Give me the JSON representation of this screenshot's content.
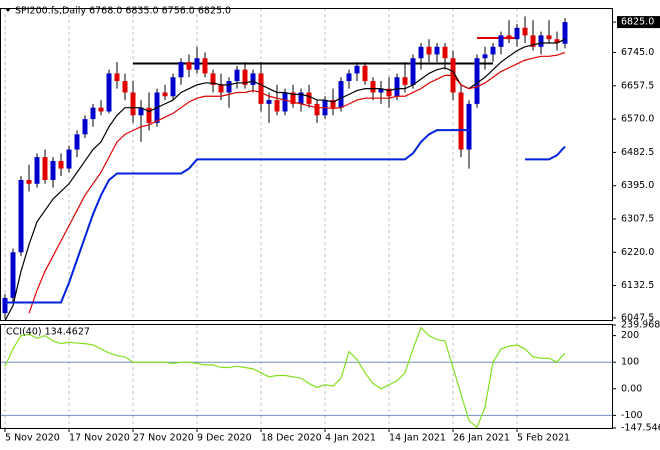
{
  "chart_data": [
    {
      "type": "candlestick",
      "title": "SPI200.fs,Daily  6768.0 6835.0 6756.0 6825.0",
      "categories": [
        "5 Nov 2020",
        null,
        null,
        null,
        null,
        null,
        null,
        null,
        "17 Nov 2020",
        null,
        null,
        null,
        null,
        null,
        null,
        null,
        "27 Nov 2020",
        null,
        null,
        null,
        null,
        null,
        null,
        null,
        "9 Dec 2020",
        null,
        null,
        null,
        null,
        null,
        null,
        null,
        "18 Dec 2020",
        null,
        null,
        null,
        null,
        null,
        null,
        null,
        "4 Jan 2021",
        null,
        null,
        null,
        null,
        null,
        null,
        null,
        "14 Jan 2021",
        null,
        null,
        null,
        null,
        null,
        null,
        null,
        "26 Jan 2021",
        null,
        null,
        null,
        null,
        null,
        null,
        null,
        "5 Feb 2021",
        null,
        null,
        null,
        null,
        null,
        null
      ],
      "open": [
        6060,
        6100,
        6220,
        6410,
        6400,
        6470,
        6410,
        6460,
        6440,
        6490,
        6530,
        6570,
        6600,
        6590,
        6690,
        6670,
        6640,
        6580,
        6600,
        6560,
        6640,
        6630,
        6680,
        6720,
        6700,
        6730,
        6690,
        6660,
        6640,
        6670,
        6700,
        6660,
        6690,
        6610,
        6620,
        6590,
        6640,
        6610,
        6640,
        6610,
        6580,
        6620,
        6600,
        6670,
        6690,
        6710,
        6670,
        6640,
        6650,
        6630,
        6680,
        6660,
        6730,
        6760,
        6740,
        6760,
        6730,
        6640,
        6490,
        6610,
        6730,
        6740,
        6760,
        6790,
        6780,
        6810,
        6790,
        6760,
        6790,
        6780,
        6768
      ],
      "high": [
        6110,
        6230,
        6420,
        6450,
        6480,
        6490,
        6470,
        6480,
        6500,
        6540,
        6580,
        6610,
        6620,
        6700,
        6720,
        6690,
        6670,
        6620,
        6640,
        6650,
        6660,
        6690,
        6730,
        6740,
        6760,
        6745,
        6700,
        6690,
        6680,
        6710,
        6720,
        6700,
        6720,
        6640,
        6660,
        6650,
        6660,
        6650,
        6660,
        6620,
        6630,
        6650,
        6680,
        6700,
        6720,
        6720,
        6680,
        6670,
        6680,
        6690,
        6720,
        6740,
        6770,
        6780,
        6770,
        6770,
        6750,
        6660,
        6620,
        6740,
        6760,
        6770,
        6800,
        6830,
        6820,
        6840,
        6830,
        6800,
        6830,
        6800,
        6835
      ],
      "low": [
        6045,
        6090,
        6210,
        6380,
        6390,
        6400,
        6390,
        6420,
        6430,
        6470,
        6520,
        6550,
        6580,
        6585,
        6650,
        6620,
        6560,
        6510,
        6540,
        6550,
        6620,
        6620,
        6660,
        6680,
        6690,
        6680,
        6640,
        6620,
        6600,
        6650,
        6650,
        6640,
        6590,
        6560,
        6580,
        6580,
        6600,
        6590,
        6600,
        6560,
        6570,
        6580,
        6590,
        6650,
        6670,
        6660,
        6620,
        6610,
        6600,
        6620,
        6640,
        6650,
        6700,
        6720,
        6720,
        6700,
        6620,
        6470,
        6440,
        6600,
        6700,
        6720,
        6740,
        6770,
        6760,
        6770,
        6750,
        6740,
        6770,
        6750,
        6756
      ],
      "close": [
        6100,
        6220,
        6410,
        6400,
        6470,
        6410,
        6460,
        6440,
        6490,
        6530,
        6570,
        6600,
        6590,
        6690,
        6670,
        6640,
        6580,
        6600,
        6560,
        6640,
        6630,
        6680,
        6720,
        6700,
        6730,
        6690,
        6660,
        6640,
        6670,
        6700,
        6660,
        6690,
        6610,
        6620,
        6590,
        6640,
        6610,
        6640,
        6610,
        6580,
        6620,
        6600,
        6670,
        6690,
        6710,
        6670,
        6640,
        6650,
        6630,
        6680,
        6660,
        6730,
        6760,
        6740,
        6760,
        6730,
        6640,
        6490,
        6610,
        6730,
        6740,
        6760,
        6790,
        6780,
        6810,
        6790,
        6760,
        6790,
        6780,
        6770,
        6825
      ],
      "up_color": "#0000cc",
      "down_color": "#e00000",
      "series": [
        {
          "color": "#000000",
          "values": [
            6040,
            6080,
            6170,
            6240,
            6300,
            6330,
            6360,
            6380,
            6400,
            6430,
            6460,
            6490,
            6510,
            6550,
            6580,
            6600,
            6600,
            6600,
            6590,
            6600,
            6610,
            6620,
            6640,
            6650,
            6660,
            6665,
            6665,
            6660,
            6660,
            6665,
            6665,
            6670,
            6660,
            6650,
            6640,
            6640,
            6635,
            6635,
            6630,
            6620,
            6620,
            6615,
            6625,
            6635,
            6645,
            6650,
            6650,
            6650,
            6645,
            6650,
            6650,
            6660,
            6675,
            6690,
            6700,
            6705,
            6695,
            6660,
            6650,
            6665,
            6680,
            6700,
            6720,
            6735,
            6750,
            6760,
            6765,
            6770,
            6770,
            6770,
            6780
          ]
        },
        {
          "color": "#e00000",
          "values": [
            null,
            null,
            null,
            6060,
            6120,
            6170,
            6210,
            6250,
            6290,
            6330,
            6370,
            6400,
            6430,
            6470,
            6510,
            6530,
            6540,
            6550,
            6555,
            6565,
            6575,
            6585,
            6600,
            6615,
            6625,
            6630,
            6630,
            6630,
            6635,
            6640,
            6640,
            6645,
            6640,
            6630,
            6625,
            6620,
            6615,
            6610,
            6605,
            6600,
            6600,
            6598,
            6600,
            6610,
            6620,
            6625,
            6625,
            6625,
            6625,
            6630,
            6630,
            6640,
            6650,
            6665,
            6675,
            6685,
            6685,
            6660,
            6650,
            6655,
            6665,
            6680,
            6695,
            6705,
            6715,
            6725,
            6730,
            6735,
            6735,
            6738,
            6745
          ]
        },
        {
          "color": "#0022dd",
          "values": [
            6088,
            6088,
            6088,
            6088,
            6088,
            6088,
            6088,
            6088,
            6140,
            6200,
            6260,
            6320,
            6370,
            6410,
            6427,
            6427,
            6427,
            6427,
            6427,
            6427,
            6427,
            6427,
            6427,
            6440,
            6464,
            6464,
            6464,
            6464,
            6464,
            6464,
            6464,
            6464,
            6464,
            6464,
            6464,
            6464,
            6464,
            6464,
            6464,
            6464,
            6464,
            6464,
            6464,
            6464,
            6464,
            6464,
            6464,
            6464,
            6464,
            6464,
            6464,
            6480,
            6510,
            6530,
            6541,
            6541,
            6541,
            6541,
            6541,
            null,
            null,
            null,
            null,
            null,
            null,
            6464,
            6464,
            6464,
            6464,
            6475,
            6498
          ]
        }
      ],
      "levels": [
        {
          "value": 6716,
          "color": "#000000"
        },
        {
          "value": 6783,
          "color": "#e00000"
        }
      ],
      "ylim": [
        6042,
        6862
      ],
      "yticks": [
        {
          "value": 6825,
          "label": "6825.0"
        },
        {
          "value": 6745,
          "label": "6745.0"
        },
        6657.5,
        {
          "value": 6570,
          "label": "6570.0"
        },
        6482.5,
        {
          "value": 6395,
          "label": "6395.0"
        },
        6307.5,
        {
          "value": 6220,
          "label": "6220.0"
        },
        6132.5,
        6047.5
      ],
      "grid": true
    },
    {
      "type": "line",
      "title": "CCI(40) 134.4627",
      "series": [
        {
          "color": "#80e020",
          "values": [
            85,
            150,
            200,
            205,
            190,
            200,
            180,
            170,
            175,
            172,
            170,
            165,
            150,
            135,
            125,
            120,
            100,
            100,
            100,
            100,
            100,
            95,
            100,
            100,
            95,
            90,
            90,
            80,
            80,
            85,
            80,
            75,
            60,
            45,
            50,
            50,
            45,
            40,
            20,
            5,
            15,
            10,
            40,
            140,
            110,
            60,
            20,
            0,
            15,
            30,
            60,
            150,
            230,
            200,
            185,
            180,
            80,
            -20,
            -120,
            -145,
            -70,
            100,
            150,
            160,
            165,
            150,
            120,
            115,
            115,
            100,
            134.4627
          ]
        }
      ],
      "levels": [
        100,
        -100
      ],
      "level_color": "#6f8fbf",
      "ylim": [
        -147.546,
        239.9682
      ],
      "yticks": [
        239.9682,
        200,
        100,
        {
          "value": 0,
          "label": "0.00"
        },
        -100,
        -147.546
      ],
      "grid": true
    }
  ]
}
